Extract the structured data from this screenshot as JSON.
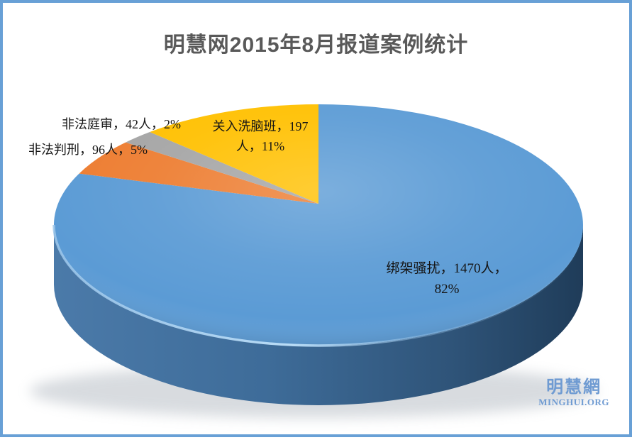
{
  "frame": {
    "border_color": "#68a0d6",
    "background": "#ffffff"
  },
  "chart_data": {
    "type": "pie",
    "style": "3d",
    "title": "明慧网2015年8月报道案例统计",
    "title_color": "#595959",
    "legend": "none",
    "start_angle_deg": 0,
    "direction": "clockwise",
    "slices": [
      {
        "id": "kidnap-harass",
        "category": "绑架骚扰",
        "value": 1470,
        "percent": 82,
        "color": "#5B9BD5",
        "label": "绑架骚扰，1470人，82%",
        "label_lines": [
          "绑架骚扰，1470人，",
          "82%"
        ]
      },
      {
        "id": "illegal-sentencing",
        "category": "非法判刑",
        "value": 96,
        "percent": 5,
        "color": "#ED7D31",
        "label": "非法判刑，96人，5%",
        "label_lines": [
          "非法判刑，96人，5%"
        ]
      },
      {
        "id": "illegal-trial",
        "category": "非法庭审",
        "value": 42,
        "percent": 2,
        "color": "#A5A5A5",
        "label": "非法庭审，42人，2%",
        "label_lines": [
          "非法庭审，42人，2%"
        ]
      },
      {
        "id": "brainwashing",
        "category": "关入洗脑班",
        "value": 197,
        "percent": 11,
        "color": "#FFC000",
        "label": "关入洗脑班，197人，11%",
        "label_lines": [
          "关入洗脑班，197",
          "人，11%"
        ]
      }
    ],
    "side_gradient": [
      "#4b7aa9",
      "#3e6c99",
      "#2f5479",
      "#1f3c59"
    ],
    "rim_highlight_color": "#b9def7"
  },
  "logo": {
    "cjk": "明慧網",
    "latin": "MINGHUI.ORG",
    "color": "#6f9bd2"
  }
}
